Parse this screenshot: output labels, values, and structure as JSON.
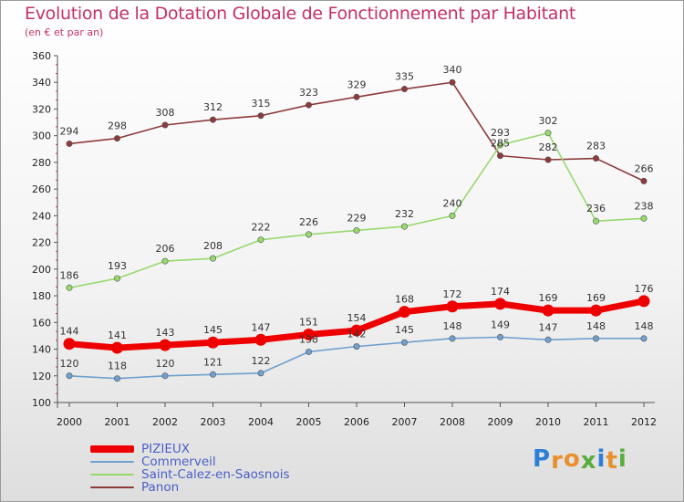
{
  "title": "Evolution de la Dotation Globale de Fonctionnement par Habitant",
  "subtitle": "(en € et par an)",
  "logo": {
    "letters": [
      "P",
      "r",
      "o",
      "x",
      "i",
      "t",
      "i"
    ],
    "colors": [
      "#2c7fd4",
      "#e8902c",
      "#e8902c",
      "#5aae3c",
      "#2c7fd4",
      "#e8902c",
      "#5aae3c"
    ]
  },
  "chart_data": {
    "type": "line",
    "title": "Evolution de la Dotation Globale de Fonctionnement par Habitant",
    "subtitle": "(en € et par an)",
    "xlabel": "",
    "ylabel": "",
    "ylim": [
      100,
      360
    ],
    "yticks": [
      100,
      120,
      140,
      160,
      180,
      200,
      220,
      240,
      260,
      280,
      300,
      320,
      340,
      360
    ],
    "grid": false,
    "legend_position": "bottom-left",
    "categories": [
      "2000",
      "2001",
      "2002",
      "2003",
      "2004",
      "2005",
      "2006",
      "2007",
      "2008",
      "2009",
      "2010",
      "2011",
      "2012"
    ],
    "series": [
      {
        "name": "PIZIEUX",
        "color": "#ee0000",
        "emphasis": true,
        "values": [
          144,
          141,
          143,
          145,
          147,
          151,
          154,
          168,
          172,
          174,
          169,
          169,
          176
        ],
        "labels": [
          "144",
          "141",
          "143",
          "145",
          "147",
          "151",
          "154",
          "168",
          "172",
          "174",
          "169",
          "169",
          "176"
        ]
      },
      {
        "name": "Commerveil",
        "color": "#6fa0cf",
        "emphasis": false,
        "values": [
          120,
          118,
          120,
          121,
          122,
          138,
          142,
          145,
          148,
          149,
          147,
          148,
          148
        ],
        "labels": [
          "120",
          "118",
          "120",
          "121",
          "122",
          "138",
          "142",
          "145",
          "148",
          "149",
          "147",
          "148",
          "148"
        ]
      },
      {
        "name": "Saint-Calez-en-Saosnois",
        "color": "#98d96e",
        "emphasis": false,
        "values": [
          186,
          193,
          206,
          208,
          222,
          226,
          229,
          232,
          240,
          293,
          302,
          236,
          238
        ],
        "labels": [
          "186",
          "193",
          "206",
          "208",
          "222",
          "226",
          "229",
          "232",
          "240",
          "293",
          "302",
          "236",
          "238"
        ]
      },
      {
        "name": "Panon",
        "color": "#8c3a3a",
        "emphasis": false,
        "values": [
          294,
          298,
          308,
          312,
          315,
          323,
          329,
          335,
          340,
          285,
          282,
          283,
          266
        ],
        "labels": [
          "294",
          "298",
          "308",
          "312",
          "315",
          "323",
          "329",
          "335",
          "340",
          "285",
          "282",
          "283",
          "266"
        ]
      }
    ]
  }
}
